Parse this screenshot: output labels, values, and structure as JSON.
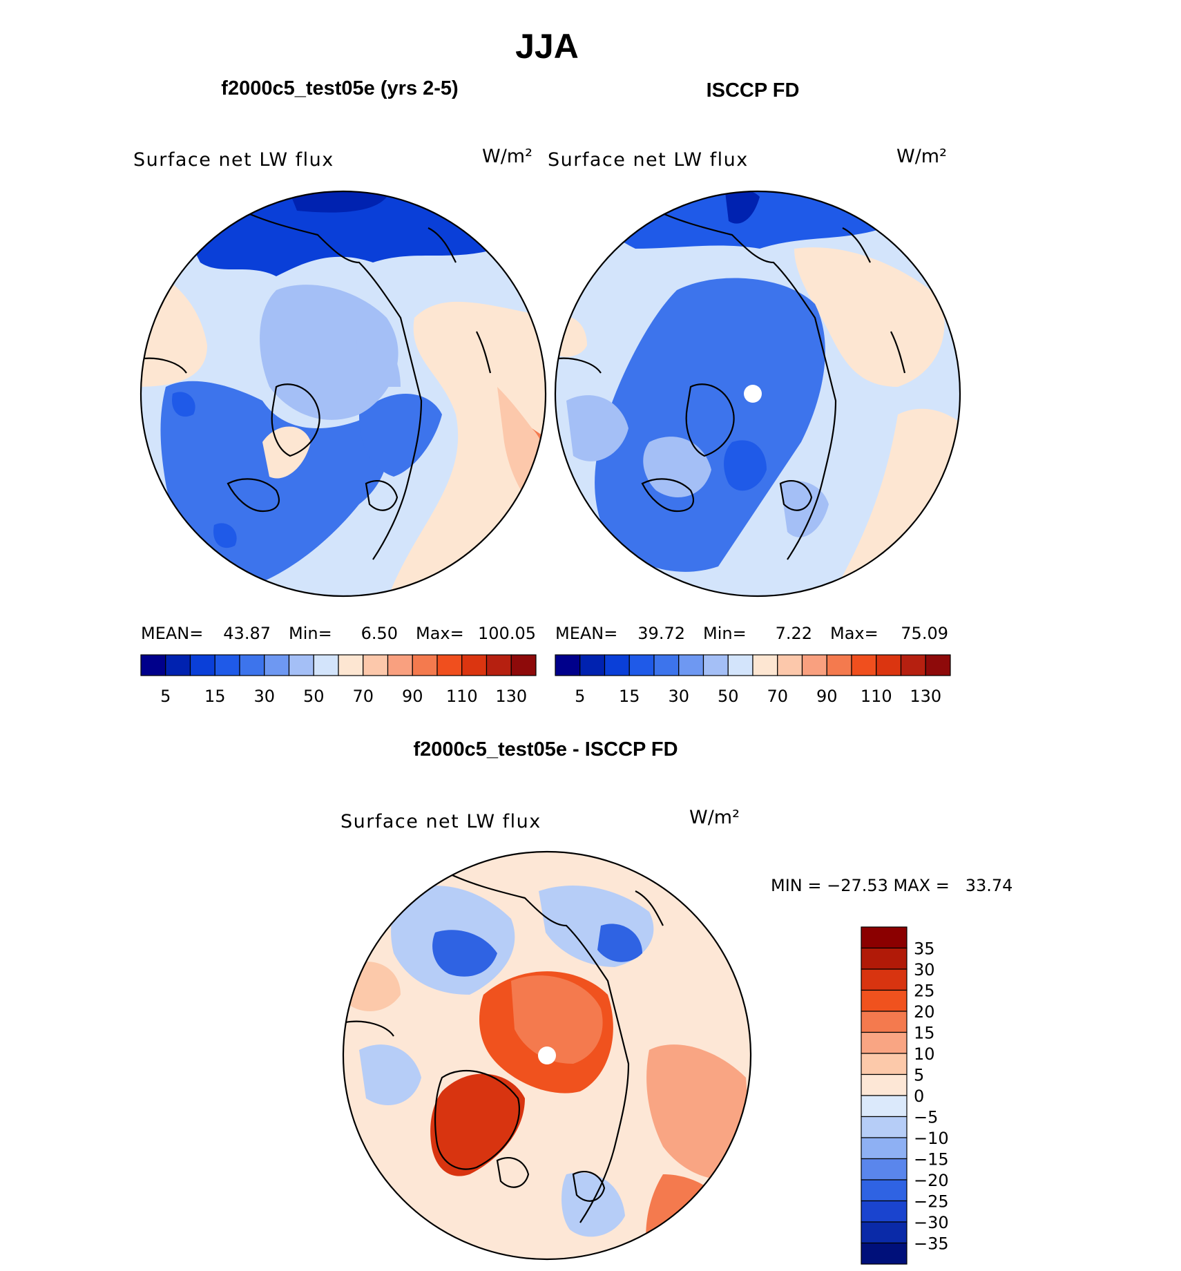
{
  "title": "JJA",
  "left_panel": {
    "title": "f2000c5_test05e (yrs 2-5)",
    "variable": "Surface net LW flux",
    "units": "W/m²",
    "stats": {
      "mean_label": "MEAN=",
      "mean": "43.87",
      "min_label": "Min=",
      "min": "6.50",
      "max_label": "Max=",
      "max": "100.05"
    }
  },
  "right_panel": {
    "title": "ISCCP FD",
    "variable": "Surface net LW flux",
    "units": "W/m²",
    "stats": {
      "mean_label": "MEAN=",
      "mean": "39.72",
      "min_label": "Min=",
      "min": "7.22",
      "max_label": "Max=",
      "max": "75.09"
    }
  },
  "flux_colorbar": {
    "tick_labels": [
      "5",
      "15",
      "30",
      "50",
      "70",
      "90",
      "110",
      "130"
    ],
    "colors": [
      "#00008b",
      "#0022b0",
      "#0a3fd8",
      "#1f5ae8",
      "#3d74ec",
      "#6e98f2",
      "#a4bff6",
      "#d3e4fb",
      "#fde6d2",
      "#fcc8ab",
      "#f9a07f",
      "#f47a4e",
      "#f04f1e",
      "#db3510",
      "#b62010",
      "#8e0a0a"
    ]
  },
  "diff_panel": {
    "title": "f2000c5_test05e - ISCCP FD",
    "variable": "Surface net LW flux",
    "units": "W/m²",
    "minmax": "MIN = −27.53 MAX =   33.74"
  },
  "diff_colorbar": {
    "tick_labels": [
      "35",
      "30",
      "25",
      "20",
      "15",
      "10",
      "5",
      "0",
      "−5",
      "−10",
      "−15",
      "−20",
      "−25",
      "−30",
      "−35"
    ],
    "colors": [
      "#8b0000",
      "#b11a08",
      "#d83410",
      "#f0521e",
      "#f47a4e",
      "#f9a583",
      "#fcc9aa",
      "#fde7d6",
      "#dbe9fb",
      "#b6cdf7",
      "#8eb0f3",
      "#5a86ec",
      "#2f63e3",
      "#1a44cf",
      "#0a2aa8",
      "#00107a"
    ]
  },
  "map_colors": {
    "land_outline": "#000000",
    "deep_blue": "#0a3fd8",
    "mid_blue": "#3d74ec",
    "light_blue": "#a4bff6",
    "pale_blue": "#d3e4fb",
    "pale_peach": "#fde6d2",
    "peach": "#fcc8ab",
    "orange": "#f47a4e",
    "red_orange": "#f04f1e",
    "pole_mask": "#ffffff"
  }
}
